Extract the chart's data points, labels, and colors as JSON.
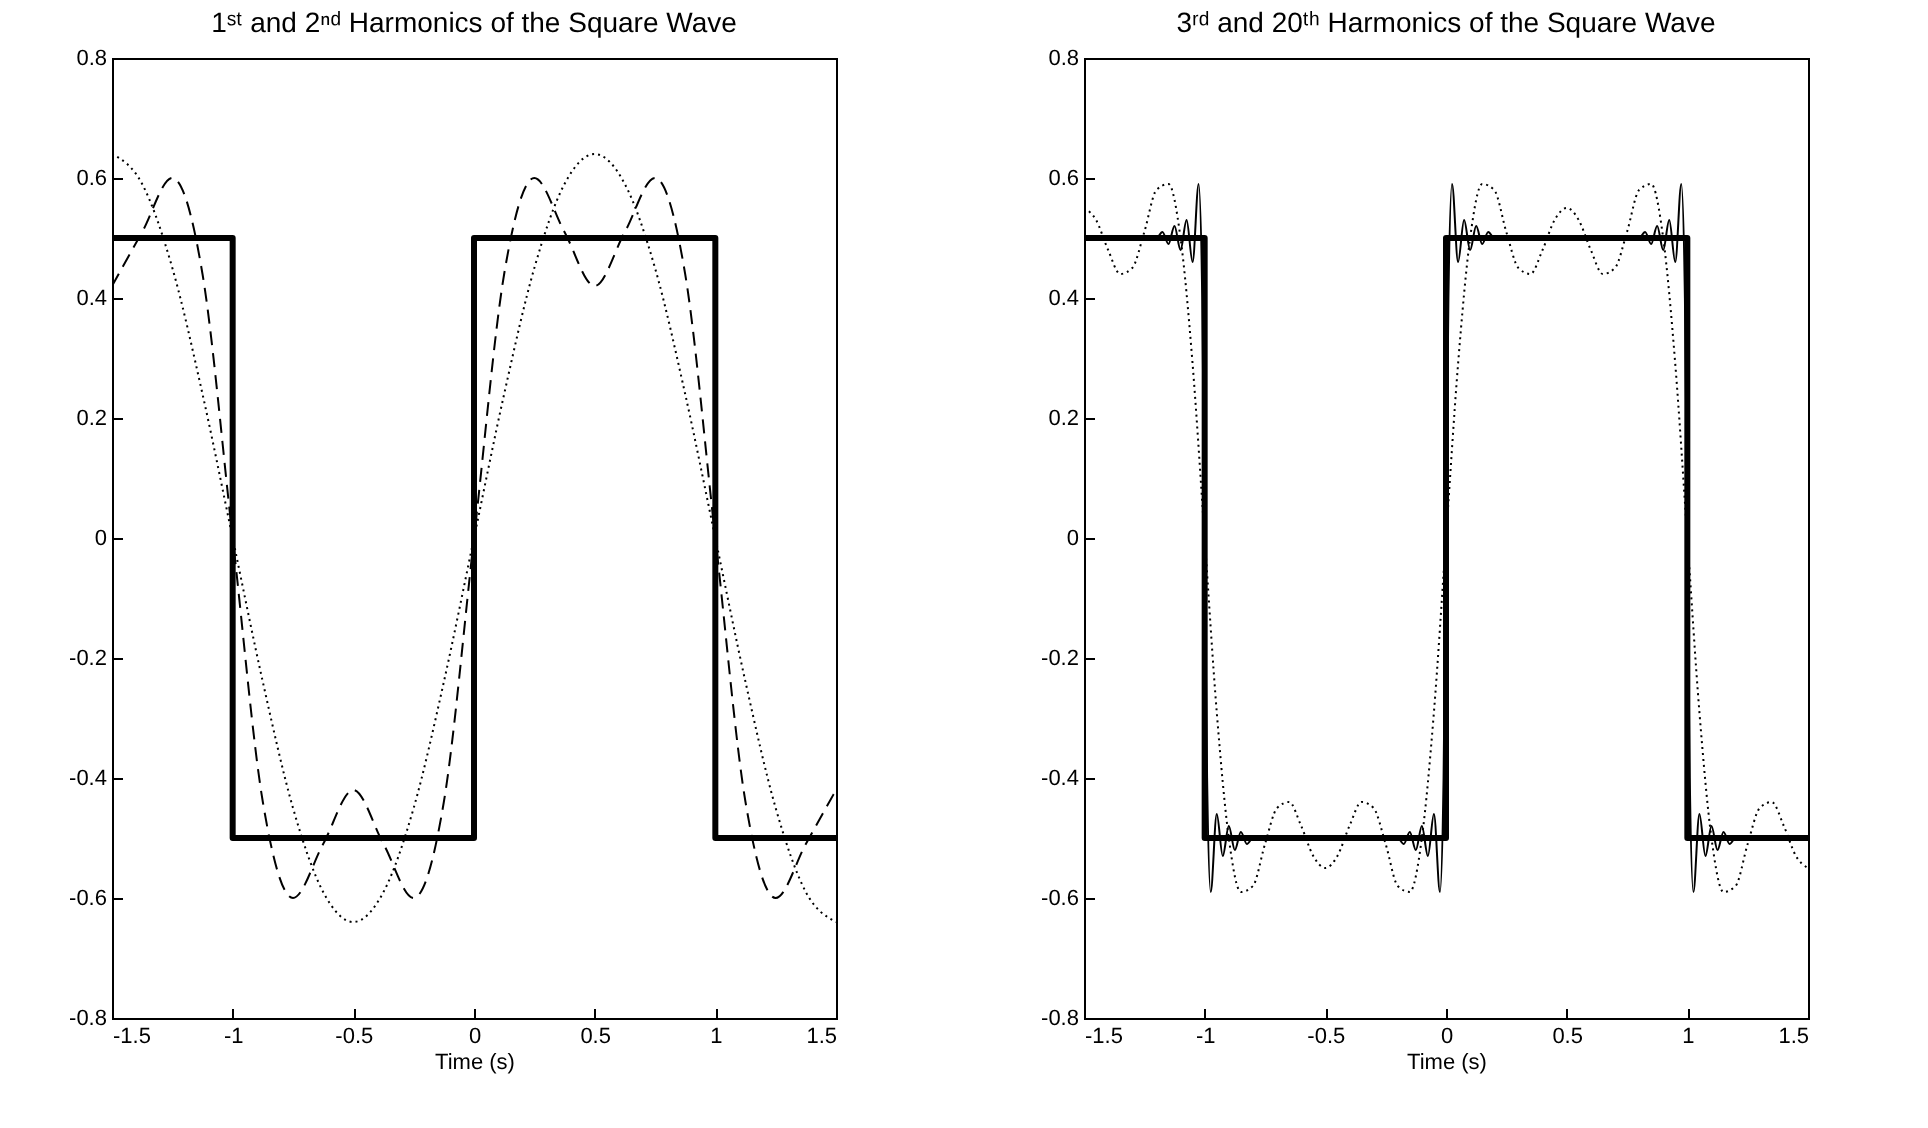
{
  "chart_data": [
    {
      "type": "line",
      "title": "1ˢᵗ and 2ⁿᵈ Harmonics of the Square Wave",
      "xlabel": "Time (s)",
      "xlim": [
        -1.5,
        1.5
      ],
      "xticks": [
        -1.5,
        -1,
        -0.5,
        0,
        0.5,
        1,
        1.5
      ],
      "ylim": [
        -0.8,
        0.8
      ],
      "yticks": [
        -0.8,
        -0.6,
        -0.4,
        -0.2,
        0,
        0.2,
        0.4,
        0.6,
        0.8
      ],
      "grid": false,
      "marker": "none",
      "series": [
        {
          "type": "line",
          "color": "#000000",
          "line_style": "dotted",
          "x": [
            -1.5,
            -1.375,
            -1.25,
            -1.125,
            -1,
            -0.875,
            -0.75,
            -0.625,
            -0.5,
            -0.375,
            -0.25,
            -0.125,
            0,
            0.125,
            0.25,
            0.375,
            0.5,
            0.625,
            0.75,
            0.875,
            1,
            1.125,
            1.25,
            1.375,
            1.5
          ],
          "values": [
            0.64,
            0.59,
            0.45,
            0.24,
            0,
            -0.24,
            -0.45,
            -0.59,
            -0.64,
            -0.59,
            -0.45,
            -0.24,
            0,
            0.24,
            0.45,
            0.59,
            0.64,
            0.59,
            0.45,
            0.24,
            0,
            -0.24,
            -0.45,
            -0.59,
            -0.64
          ]
        },
        {
          "type": "line",
          "color": "#000000",
          "line_style": "dashed",
          "x": [
            -1.5,
            -1.375,
            -1.25,
            -1.125,
            -1,
            -0.875,
            -0.75,
            -0.625,
            -0.5,
            -0.375,
            -0.25,
            -0.125,
            0,
            0.125,
            0.25,
            0.375,
            0.5,
            0.625,
            0.75,
            0.875,
            1,
            1.125,
            1.25,
            1.375,
            1.5
          ],
          "values": [
            0.42,
            0.51,
            0.6,
            0.44,
            0,
            -0.44,
            -0.6,
            -0.51,
            -0.42,
            -0.51,
            -0.6,
            -0.44,
            0,
            0.44,
            0.6,
            0.51,
            0.42,
            0.51,
            0.6,
            0.44,
            0,
            -0.44,
            -0.6,
            -0.51,
            -0.42
          ]
        },
        {
          "type": "step",
          "color": "#000000",
          "line_style": "solid",
          "x": [
            -1.5,
            -1,
            0,
            1,
            1.5
          ],
          "values": [
            0.5,
            -0.5,
            0.5,
            -0.5,
            -0.5
          ]
        }
      ]
    },
    {
      "type": "line",
      "title": "3ʳᵈ and 20ᵗʰ Harmonics of the Square Wave",
      "xlabel": "Time (s)",
      "xlim": [
        -1.5,
        1.5
      ],
      "xticks": [
        -1.5,
        -1,
        -0.5,
        0,
        0.5,
        1,
        1.5
      ],
      "ylim": [
        -0.8,
        0.8
      ],
      "yticks": [
        -0.8,
        -0.6,
        -0.4,
        -0.2,
        0,
        0.2,
        0.4,
        0.6,
        0.8
      ],
      "grid": false,
      "marker": "none",
      "series": [
        {
          "type": "line",
          "color": "#000000",
          "line_style": "dotted",
          "x": [
            -1.5,
            -1.45,
            -1.4,
            -1.35,
            -1.3,
            -1.25,
            -1.2,
            -1.15,
            -1.1,
            -1.05,
            -1,
            -0.95,
            -0.9,
            -0.85,
            -0.8,
            -0.75,
            -0.7,
            -0.65,
            -0.6,
            -0.55,
            -0.5,
            -0.45,
            -0.4,
            -0.35,
            -0.3,
            -0.25,
            -0.2,
            -0.15,
            -0.1,
            -0.05,
            0,
            0.05,
            0.1,
            0.15,
            0.2,
            0.25,
            0.3,
            0.35,
            0.4,
            0.45,
            0.5,
            0.55,
            0.6,
            0.65,
            0.7,
            0.75,
            0.8,
            0.85,
            0.9,
            0.95,
            1,
            1.05,
            1.1,
            1.15,
            1.2,
            1.25,
            1.3,
            1.35,
            1.4,
            1.45,
            1.5
          ],
          "values": [
            0.55,
            0.53,
            0.48,
            0.44,
            0.45,
            0.51,
            0.58,
            0.59,
            0.5,
            0.29,
            0,
            -0.29,
            -0.5,
            -0.59,
            -0.58,
            -0.51,
            -0.45,
            -0.44,
            -0.48,
            -0.53,
            -0.55,
            -0.53,
            -0.48,
            -0.44,
            -0.45,
            -0.51,
            -0.58,
            -0.59,
            -0.5,
            -0.29,
            0,
            0.29,
            0.5,
            0.59,
            0.58,
            0.51,
            0.45,
            0.44,
            0.48,
            0.53,
            0.55,
            0.53,
            0.48,
            0.44,
            0.45,
            0.51,
            0.58,
            0.59,
            0.5,
            0.29,
            0,
            -0.29,
            -0.5,
            -0.59,
            -0.58,
            -0.51,
            -0.45,
            -0.44,
            -0.48,
            -0.53,
            -0.55
          ]
        },
        {
          "type": "line",
          "color": "#000000",
          "line_style": "solid",
          "x": [
            -1.5,
            -1.2,
            -1.175,
            -1.15,
            -1.125,
            -1.1,
            -1.075,
            -1.05,
            -1.025,
            -1.01,
            -1,
            -0.99,
            -0.975,
            -0.95,
            -0.925,
            -0.9,
            -0.875,
            -0.85,
            -0.825,
            -0.8,
            -0.2,
            -0.175,
            -0.15,
            -0.125,
            -0.1,
            -0.075,
            -0.05,
            -0.025,
            -0.01,
            0,
            0.01,
            0.025,
            0.05,
            0.075,
            0.1,
            0.125,
            0.15,
            0.175,
            0.2,
            0.8,
            0.825,
            0.85,
            0.875,
            0.9,
            0.925,
            0.95,
            0.975,
            0.99,
            1,
            1.01,
            1.025,
            1.05,
            1.075,
            1.1,
            1.125,
            1.15,
            1.175,
            1.2,
            1.5
          ],
          "values": [
            0.5,
            0.5,
            0.51,
            0.49,
            0.52,
            0.48,
            0.53,
            0.46,
            0.59,
            0.4,
            0,
            -0.4,
            -0.59,
            -0.46,
            -0.53,
            -0.48,
            -0.52,
            -0.49,
            -0.51,
            -0.5,
            -0.5,
            -0.51,
            -0.49,
            -0.52,
            -0.48,
            -0.53,
            -0.46,
            -0.59,
            -0.4,
            0,
            0.4,
            0.59,
            0.46,
            0.53,
            0.48,
            0.52,
            0.49,
            0.51,
            0.5,
            0.5,
            0.51,
            0.49,
            0.52,
            0.48,
            0.53,
            0.46,
            0.59,
            0.4,
            0,
            -0.4,
            -0.59,
            -0.46,
            -0.53,
            -0.48,
            -0.52,
            -0.49,
            -0.51,
            -0.5,
            -0.5
          ]
        },
        {
          "type": "step",
          "color": "#000000",
          "line_style": "solid",
          "x": [
            -1.5,
            -1,
            0,
            1,
            1.5
          ],
          "values": [
            0.5,
            -0.5,
            0.5,
            -0.5,
            -0.5
          ]
        }
      ]
    }
  ]
}
